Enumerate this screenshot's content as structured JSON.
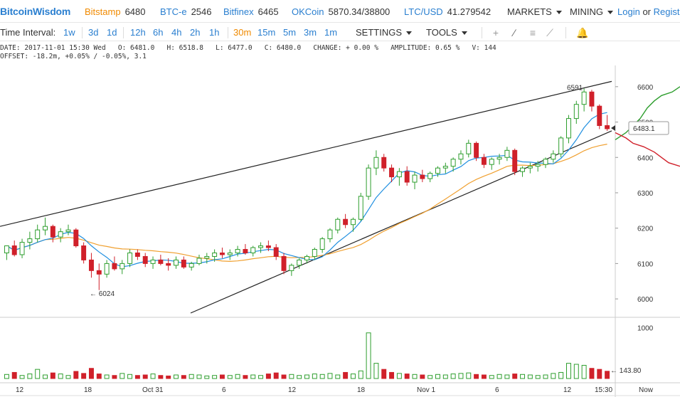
{
  "header": {
    "brand": "BitcoinWisdom",
    "tickers": [
      {
        "exchange": "Bitstamp",
        "price": "6480",
        "active": true
      },
      {
        "exchange": "BTC-e",
        "price": "2546",
        "active": false
      },
      {
        "exchange": "Bitfinex",
        "price": "6465",
        "active": false
      },
      {
        "exchange": "OKCoin",
        "price": "5870.34/38800",
        "active": false
      },
      {
        "exchange": "LTC/USD",
        "price": "41.279542",
        "active": false
      }
    ],
    "markets_label": "MARKETS",
    "mining_label": "MINING",
    "login_label": "Login",
    "or_label": "or",
    "register_label": "Registe"
  },
  "toolbar": {
    "time_interval_label": "Time Interval:",
    "intervals": [
      "1w",
      "3d",
      "1d",
      "12h",
      "6h",
      "4h",
      "2h",
      "1h",
      "30m",
      "15m",
      "5m",
      "3m",
      "1m"
    ],
    "active_interval": "30m",
    "settings_label": "SETTINGS",
    "tools_label": "TOOLS"
  },
  "info": {
    "line1": "DATE: 2017-11-01 15:30 Wed   O: 6481.0   H: 6518.8   L: 6477.0   C: 6480.0   CHANGE: + 0.00 %   AMPLITUDE: 0.65 %   V: 144",
    "line2": "OFFSET: -18.2m, +0.05% / -0.05%, 3.1"
  },
  "chart_data": {
    "type": "candlestick",
    "price_axis_ticks": [
      6000,
      6100,
      6200,
      6300,
      6400,
      6500,
      6600
    ],
    "price_ylim": [
      5960,
      6660
    ],
    "volume_axis_ticks": [
      1000
    ],
    "x_tick_labels": [
      "12",
      "18",
      "Oct 31",
      "6",
      "12",
      "18",
      "Nov 1",
      "6",
      "12",
      "15:30",
      "Now"
    ],
    "annotations": {
      "high_label": "6591",
      "low_label": "← 6024",
      "current_price": "6483.1",
      "current_volume": "← 143.80"
    },
    "trendlines": [
      {
        "from": [
          0,
          6205
        ],
        "to": [
          165,
          6615
        ]
      },
      {
        "from": [
          50,
          5960
        ],
        "to": [
          165,
          6475
        ]
      }
    ],
    "candles": [
      [
        6130,
        6150,
        6110,
        6150
      ],
      [
        6150,
        6165,
        6120,
        6125
      ],
      [
        6125,
        6170,
        6115,
        6160
      ],
      [
        6160,
        6190,
        6140,
        6170
      ],
      [
        6170,
        6210,
        6160,
        6195
      ],
      [
        6195,
        6230,
        6180,
        6205
      ],
      [
        6205,
        6210,
        6160,
        6175
      ],
      [
        6175,
        6200,
        6160,
        6190
      ],
      [
        6190,
        6210,
        6180,
        6195
      ],
      [
        6195,
        6200,
        6145,
        6150
      ],
      [
        6150,
        6160,
        6100,
        6110
      ],
      [
        6110,
        6130,
        6060,
        6080
      ],
      [
        6080,
        6100,
        6025,
        6070
      ],
      [
        6070,
        6110,
        6060,
        6100
      ],
      [
        6100,
        6120,
        6080,
        6085
      ],
      [
        6085,
        6110,
        6070,
        6100
      ],
      [
        6100,
        6140,
        6090,
        6130
      ],
      [
        6130,
        6140,
        6110,
        6120
      ],
      [
        6120,
        6130,
        6090,
        6100
      ],
      [
        6100,
        6120,
        6085,
        6110
      ],
      [
        6110,
        6125,
        6095,
        6100
      ],
      [
        6100,
        6115,
        6080,
        6095
      ],
      [
        6095,
        6120,
        6085,
        6110
      ],
      [
        6110,
        6120,
        6085,
        6090
      ],
      [
        6090,
        6105,
        6080,
        6100
      ],
      [
        6100,
        6125,
        6095,
        6115
      ],
      [
        6115,
        6130,
        6100,
        6120
      ],
      [
        6120,
        6140,
        6105,
        6130
      ],
      [
        6130,
        6145,
        6115,
        6125
      ],
      [
        6125,
        6140,
        6110,
        6130
      ],
      [
        6130,
        6150,
        6120,
        6140
      ],
      [
        6140,
        6155,
        6125,
        6130
      ],
      [
        6130,
        6150,
        6120,
        6145
      ],
      [
        6145,
        6160,
        6130,
        6150
      ],
      [
        6150,
        6165,
        6135,
        6145
      ],
      [
        6145,
        6155,
        6110,
        6120
      ],
      [
        6120,
        6130,
        6070,
        6080
      ],
      [
        6080,
        6100,
        6065,
        6095
      ],
      [
        6095,
        6115,
        6085,
        6110
      ],
      [
        6110,
        6125,
        6100,
        6120
      ],
      [
        6120,
        6145,
        6110,
        6140
      ],
      [
        6140,
        6175,
        6130,
        6170
      ],
      [
        6170,
        6200,
        6160,
        6195
      ],
      [
        6195,
        6230,
        6185,
        6225
      ],
      [
        6225,
        6240,
        6200,
        6210
      ],
      [
        6210,
        6230,
        6190,
        6225
      ],
      [
        6225,
        6300,
        6220,
        6290
      ],
      [
        6290,
        6380,
        6280,
        6370
      ],
      [
        6370,
        6420,
        6350,
        6400
      ],
      [
        6400,
        6410,
        6360,
        6370
      ],
      [
        6370,
        6380,
        6330,
        6345
      ],
      [
        6345,
        6370,
        6320,
        6360
      ],
      [
        6360,
        6375,
        6320,
        6330
      ],
      [
        6330,
        6360,
        6310,
        6350
      ],
      [
        6350,
        6365,
        6330,
        6340
      ],
      [
        6340,
        6360,
        6330,
        6355
      ],
      [
        6355,
        6375,
        6345,
        6370
      ],
      [
        6370,
        6385,
        6355,
        6375
      ],
      [
        6375,
        6400,
        6360,
        6395
      ],
      [
        6395,
        6420,
        6380,
        6410
      ],
      [
        6410,
        6450,
        6400,
        6440
      ],
      [
        6440,
        6445,
        6390,
        6400
      ],
      [
        6400,
        6410,
        6370,
        6380
      ],
      [
        6380,
        6400,
        6365,
        6395
      ],
      [
        6395,
        6410,
        6380,
        6400
      ],
      [
        6400,
        6430,
        6390,
        6420
      ],
      [
        6420,
        6425,
        6350,
        6360
      ],
      [
        6360,
        6375,
        6345,
        6370
      ],
      [
        6370,
        6385,
        6355,
        6375
      ],
      [
        6375,
        6390,
        6360,
        6380
      ],
      [
        6380,
        6400,
        6370,
        6395
      ],
      [
        6395,
        6420,
        6385,
        6410
      ],
      [
        6410,
        6460,
        6400,
        6455
      ],
      [
        6455,
        6520,
        6440,
        6510
      ],
      [
        6510,
        6560,
        6495,
        6550
      ],
      [
        6550,
        6595,
        6530,
        6585
      ],
      [
        6585,
        6591,
        6530,
        6545
      ],
      [
        6545,
        6550,
        6480,
        6490
      ],
      [
        6490,
        6520,
        6475,
        6481
      ]
    ],
    "volumes": [
      80,
      120,
      60,
      90,
      180,
      70,
      110,
      90,
      60,
      140,
      100,
      200,
      90,
      70,
      60,
      100,
      80,
      60,
      70,
      90,
      60,
      50,
      70,
      60,
      80,
      70,
      50,
      60,
      70,
      60,
      80,
      60,
      70,
      60,
      90,
      110,
      70,
      80,
      60,
      70,
      90,
      80,
      100,
      70,
      120,
      90,
      150,
      900,
      300,
      180,
      120,
      100,
      90,
      80,
      70,
      60,
      80,
      70,
      90,
      100,
      110,
      80,
      70,
      60,
      80,
      70,
      90,
      80,
      70,
      60,
      70,
      100,
      120,
      300,
      280,
      260,
      200,
      180,
      143
    ],
    "ma_fast_color": "#1f8fe0",
    "ma_slow_color": "#f0a030",
    "bid_color": "#2e9e2e",
    "ask_color": "#d0202a",
    "up_color": "#2e9e2e",
    "down_color": "#d0202a"
  }
}
